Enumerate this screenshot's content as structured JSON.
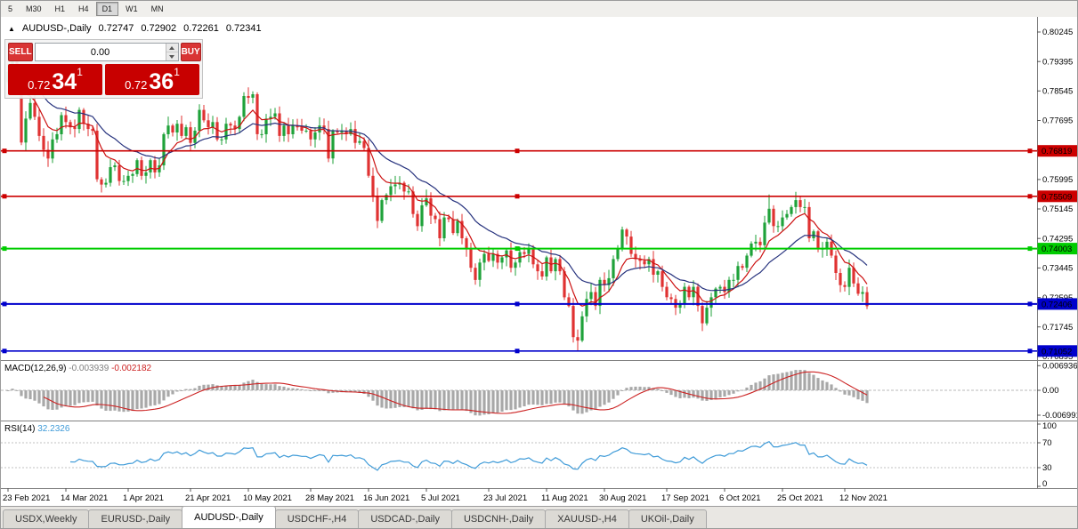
{
  "toolbar": {
    "timeframes": [
      {
        "label": "5",
        "active": false
      },
      {
        "label": "M30",
        "active": false
      },
      {
        "label": "H1",
        "active": false
      },
      {
        "label": "H4",
        "active": false
      },
      {
        "label": "D1",
        "active": true
      },
      {
        "label": "W1",
        "active": false
      },
      {
        "label": "MN",
        "active": false
      }
    ]
  },
  "chart_header": {
    "collapse_icon": "▲",
    "symbol": "AUDUSD-,Daily",
    "open": "0.72747",
    "high": "0.72902",
    "low": "0.72261",
    "close": "0.72341"
  },
  "one_click": {
    "sell_label": "SELL",
    "buy_label": "BUY",
    "volume": "0.00",
    "bid_prefix": "0.72",
    "bid_big": "34",
    "bid_pip": "1",
    "ask_prefix": "0.72",
    "ask_big": "36",
    "ask_pip": "1"
  },
  "tabs": [
    {
      "label": "USDX,Weekly",
      "active": false
    },
    {
      "label": "EURUSD-,Daily",
      "active": false
    },
    {
      "label": "AUDUSD-,Daily",
      "active": true
    },
    {
      "label": "USDCHF-,H4",
      "active": false
    },
    {
      "label": "USDCAD-,Daily",
      "active": false
    },
    {
      "label": "USDCNH-,Daily",
      "active": false
    },
    {
      "label": "XAUUSD-,H4",
      "active": false
    },
    {
      "label": "UKOil-,Daily",
      "active": false
    }
  ],
  "chart_data": {
    "type": "candlestick",
    "symbol": "AUDUSD-",
    "timeframe": "Daily",
    "first_open": 0.788,
    "closes": [
      0.791,
      0.7965,
      0.787,
      0.7706,
      0.7775,
      0.782,
      0.778,
      0.7725,
      0.7685,
      0.766,
      0.7715,
      0.773,
      0.7785,
      0.7765,
      0.775,
      0.7745,
      0.78,
      0.776,
      0.7745,
      0.774,
      0.76,
      0.7585,
      0.759,
      0.7635,
      0.764,
      0.7595,
      0.7595,
      0.761,
      0.7615,
      0.7655,
      0.761,
      0.762,
      0.7655,
      0.762,
      0.764,
      0.773,
      0.7755,
      0.7735,
      0.776,
      0.7725,
      0.775,
      0.7705,
      0.774,
      0.78,
      0.777,
      0.775,
      0.7765,
      0.7715,
      0.7715,
      0.776,
      0.7755,
      0.7745,
      0.778,
      0.784,
      0.7835,
      0.7845,
      0.773,
      0.773,
      0.7775,
      0.778,
      0.779,
      0.7725,
      0.7755,
      0.773,
      0.7755,
      0.775,
      0.774,
      0.774,
      0.7715,
      0.7735,
      0.7755,
      0.7745,
      0.766,
      0.774,
      0.7735,
      0.774,
      0.773,
      0.7745,
      0.7705,
      0.771,
      0.769,
      0.761,
      0.755,
      0.748,
      0.754,
      0.7555,
      0.758,
      0.7585,
      0.759,
      0.7565,
      0.7565,
      0.75,
      0.7465,
      0.7525,
      0.7545,
      0.7495,
      0.7485,
      0.743,
      0.749,
      0.7485,
      0.7445,
      0.748,
      0.743,
      0.74,
      0.7345,
      0.731,
      0.736,
      0.7385,
      0.7365,
      0.7385,
      0.736,
      0.7375,
      0.7395,
      0.7345,
      0.736,
      0.739,
      0.7385,
      0.74,
      0.7355,
      0.7335,
      0.732,
      0.7375,
      0.7335,
      0.737,
      0.7335,
      0.726,
      0.7235,
      0.7145,
      0.7135,
      0.7205,
      0.7255,
      0.7275,
      0.7235,
      0.731,
      0.7295,
      0.7315,
      0.737,
      0.74,
      0.7455,
      0.7435,
      0.7385,
      0.737,
      0.7365,
      0.7355,
      0.737,
      0.7325,
      0.7335,
      0.729,
      0.726,
      0.7255,
      0.723,
      0.724,
      0.729,
      0.726,
      0.729,
      0.7235,
      0.7185,
      0.723,
      0.726,
      0.7285,
      0.729,
      0.7275,
      0.731,
      0.731,
      0.735,
      0.7345,
      0.738,
      0.7415,
      0.742,
      0.741,
      0.7475,
      0.7515,
      0.7465,
      0.7465,
      0.749,
      0.75,
      0.752,
      0.754,
      0.752,
      0.752,
      0.743,
      0.745,
      0.74,
      0.74,
      0.742,
      0.738,
      0.733,
      0.7295,
      0.729,
      0.7345,
      0.73,
      0.727,
      0.7275,
      0.72341
    ],
    "overrides": {
      "1": {
        "high": 0.7995
      },
      "21": {
        "low": 0.7562
      },
      "128": {
        "low": 0.7106
      },
      "171": {
        "high": 0.7556
      },
      "193": {
        "open": 0.72747,
        "high": 0.72902,
        "low": 0.72261,
        "close": 0.72341
      }
    },
    "ylim": [
      0.7079,
      0.8068
    ],
    "price_ticks": [
      "0.80245",
      "0.79395",
      "0.78545",
      "0.77695",
      "0.76845",
      "0.75995",
      "0.75145",
      "0.74295",
      "0.73445",
      "0.72595",
      "0.71745",
      "0.70895"
    ],
    "hlines": [
      {
        "value": 0.76819,
        "label": "0.76819",
        "color": "#cc0000",
        "width": 1.6
      },
      {
        "value": 0.75509,
        "label": "0.75509",
        "color": "#cc0000",
        "width": 1.6
      },
      {
        "value": 0.74003,
        "label": "0.74003",
        "color": "#00cc00",
        "width": 2
      },
      {
        "value": 0.72406,
        "label": "0.72406",
        "color": "#0000cc",
        "width": 2
      },
      {
        "value": 0.71052,
        "label": "0.71052",
        "color": "#0000cc",
        "width": 1.6
      }
    ],
    "date_ticks": [
      {
        "i": 0,
        "label": "23 Feb 2021"
      },
      {
        "i": 13,
        "label": "14 Mar 2021"
      },
      {
        "i": 27,
        "label": "1 Apr 2021"
      },
      {
        "i": 41,
        "label": "21 Apr 2021"
      },
      {
        "i": 54,
        "label": "10 May 2021"
      },
      {
        "i": 68,
        "label": "28 May 2021"
      },
      {
        "i": 81,
        "label": "16 Jun 2021"
      },
      {
        "i": 94,
        "label": "5 Jul 2021"
      },
      {
        "i": 108,
        "label": "23 Jul 2021"
      },
      {
        "i": 121,
        "label": "11 Aug 2021"
      },
      {
        "i": 134,
        "label": "30 Aug 2021"
      },
      {
        "i": 148,
        "label": "17 Sep 2021"
      },
      {
        "i": 161,
        "label": "6 Oct 2021"
      },
      {
        "i": 174,
        "label": "25 Oct 2021"
      },
      {
        "i": 188,
        "label": "12 Nov 2021"
      }
    ],
    "indicators": {
      "macd": {
        "label": "MACD(12,26,9)",
        "value_hist": "-0.003939",
        "value_signal": "-0.002182",
        "axis": [
          {
            "label": "0.006936",
            "value": 0.006936
          },
          {
            "label": "0.00",
            "value": 0
          },
          {
            "label": "-0.006991",
            "value": -0.006991
          }
        ]
      },
      "rsi": {
        "label": "RSI(14)",
        "value": "32.2326",
        "axis": [
          {
            "label": "100",
            "value": 100
          },
          {
            "label": "70",
            "value": 70
          },
          {
            "label": "30",
            "value": 30
          },
          {
            "label": "0",
            "value": 0
          }
        ],
        "levels": [
          70,
          30
        ]
      }
    },
    "colors": {
      "up": "#1fa23a",
      "down": "#e03232",
      "ma_fast": "#cc1111",
      "ma_slow": "#27337e",
      "macd_hist": "#a8a8a8",
      "macd_signal": "#cc2222",
      "rsi": "#3f9bd8"
    }
  }
}
